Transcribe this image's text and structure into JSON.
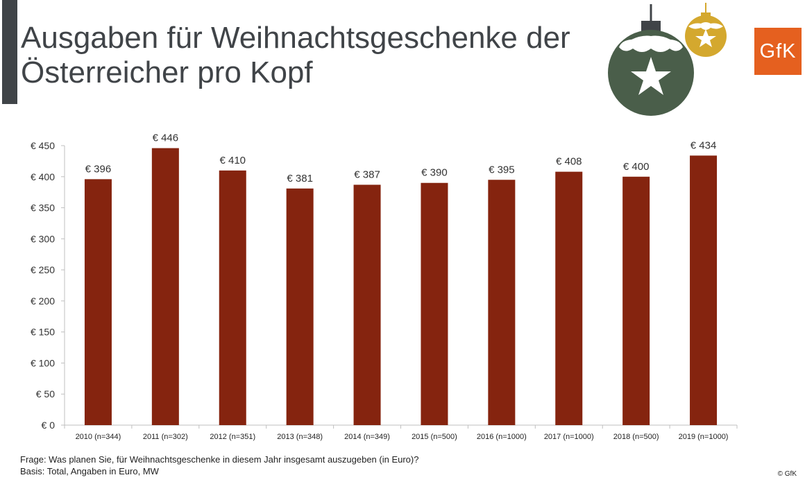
{
  "header": {
    "title_line1": "Ausgaben für Weihnachtsgeschenke der",
    "title_line2": "Österreicher pro Kopf",
    "logo_text": "GfK",
    "accent_color": "#404448",
    "brand_color": "#e5601f",
    "ornament_colors": [
      "#4a5e4a",
      "#d4a82e"
    ]
  },
  "chart_data": {
    "type": "bar",
    "categories": [
      "2010 (n=344)",
      "2011 (n=302)",
      "2012 (n=351)",
      "2013 (n=348)",
      "2014 (n=349)",
      "2015 (n=500)",
      "2016 (n=1000)",
      "2017 (n=1000)",
      "2018 (n=500)",
      "2019 (n=1000)"
    ],
    "values": [
      396,
      446,
      410,
      381,
      387,
      390,
      395,
      408,
      400,
      434
    ],
    "data_labels": [
      "€ 396",
      "€ 446",
      "€ 410",
      "€ 381",
      "€ 387",
      "€ 390",
      "€ 395",
      "€ 408",
      "€ 400",
      "€ 434"
    ],
    "yticks": [
      0,
      50,
      100,
      150,
      200,
      250,
      300,
      350,
      400,
      450
    ],
    "ytick_labels": [
      "€ 0",
      "€ 50",
      "€ 100",
      "€ 150",
      "€ 200",
      "€ 250",
      "€ 300",
      "€ 350",
      "€ 400",
      "€ 450"
    ],
    "ylim": [
      0,
      450
    ],
    "bar_color": "#85240f",
    "grid": false,
    "legend": "none"
  },
  "footer": {
    "question": "Frage: Was planen Sie, für Weihnachtsgeschenke in diesem Jahr insgesamt auszugeben (in Euro)?",
    "basis": "Basis: Total, Angaben in Euro, MW",
    "copyright": "© GfK"
  }
}
